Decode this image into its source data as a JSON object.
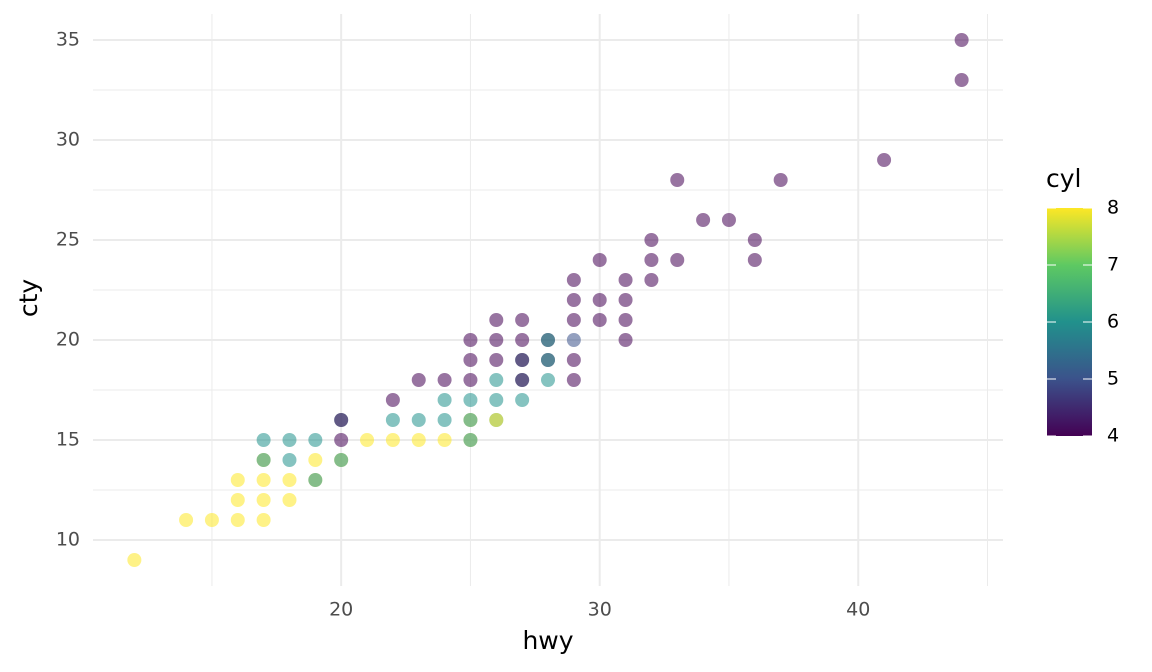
{
  "chart_data": {
    "type": "scatter",
    "x_label": "hwy",
    "y_label": "cty",
    "x": [
      12,
      14,
      15,
      16,
      16,
      16,
      17,
      17,
      17,
      17,
      17,
      17,
      18,
      18,
      18,
      18,
      19,
      19,
      19,
      19,
      20,
      20,
      20,
      20,
      20,
      21,
      22,
      22,
      22,
      23,
      23,
      23,
      24,
      24,
      24,
      24,
      25,
      25,
      25,
      25,
      25,
      25,
      25,
      25,
      26,
      26,
      26,
      26,
      26,
      26,
      26,
      27,
      27,
      27,
      27,
      27,
      27,
      27,
      28,
      28,
      28,
      28,
      28,
      29,
      29,
      29,
      29,
      29,
      29,
      30,
      30,
      30,
      31,
      31,
      31,
      31,
      32,
      32,
      32,
      33,
      33,
      34,
      35,
      36,
      36,
      37,
      41,
      44,
      44
    ],
    "y": [
      9,
      11,
      11,
      11,
      12,
      13,
      11,
      12,
      13,
      14,
      14,
      15,
      12,
      13,
      14,
      15,
      13,
      13,
      14,
      15,
      14,
      14,
      15,
      16,
      16,
      15,
      15,
      16,
      17,
      15,
      16,
      18,
      15,
      16,
      17,
      18,
      15,
      15,
      16,
      16,
      17,
      18,
      19,
      20,
      16,
      17,
      18,
      19,
      20,
      21,
      16,
      17,
      18,
      18,
      19,
      19,
      20,
      21,
      18,
      19,
      19,
      20,
      20,
      18,
      19,
      20,
      21,
      22,
      23,
      21,
      22,
      24,
      20,
      21,
      22,
      23,
      23,
      24,
      25,
      24,
      28,
      26,
      26,
      24,
      25,
      28,
      29,
      33,
      35
    ],
    "cyl": [
      8,
      8,
      8,
      8,
      8,
      8,
      8,
      8,
      8,
      8,
      6,
      6,
      8,
      8,
      6,
      6,
      8,
      6,
      8,
      6,
      8,
      6,
      4,
      6,
      4,
      8,
      8,
      6,
      4,
      8,
      6,
      4,
      8,
      6,
      6,
      4,
      8,
      6,
      8,
      6,
      6,
      4,
      4,
      4,
      6,
      6,
      6,
      4,
      4,
      4,
      8,
      6,
      6,
      4,
      6,
      4,
      4,
      4,
      6,
      4,
      6,
      4,
      6,
      4,
      4,
      5,
      4,
      4,
      4,
      4,
      4,
      4,
      4,
      4,
      4,
      4,
      4,
      4,
      4,
      4,
      4,
      4,
      4,
      4,
      4,
      4,
      4,
      4,
      4
    ],
    "xlim": [
      10.4,
      45.6
    ],
    "ylim": [
      7.7,
      36.3
    ],
    "xticks": [
      20,
      30,
      40
    ],
    "yticks": [
      10,
      15,
      20,
      25,
      30,
      35
    ],
    "x_minor_breaks": [
      15,
      25,
      35,
      45
    ],
    "y_minor_breaks": [
      12.5,
      17.5,
      22.5,
      27.5,
      32.5
    ],
    "grid": true,
    "legend_title": "cyl",
    "color_lim": [
      4,
      8
    ],
    "color_ticks": [
      4,
      5,
      6,
      7,
      8
    ],
    "colormap": [
      "#440154",
      "#3b528b",
      "#21918c",
      "#5ec962",
      "#fde725"
    ],
    "point_opacity": 0.55
  }
}
